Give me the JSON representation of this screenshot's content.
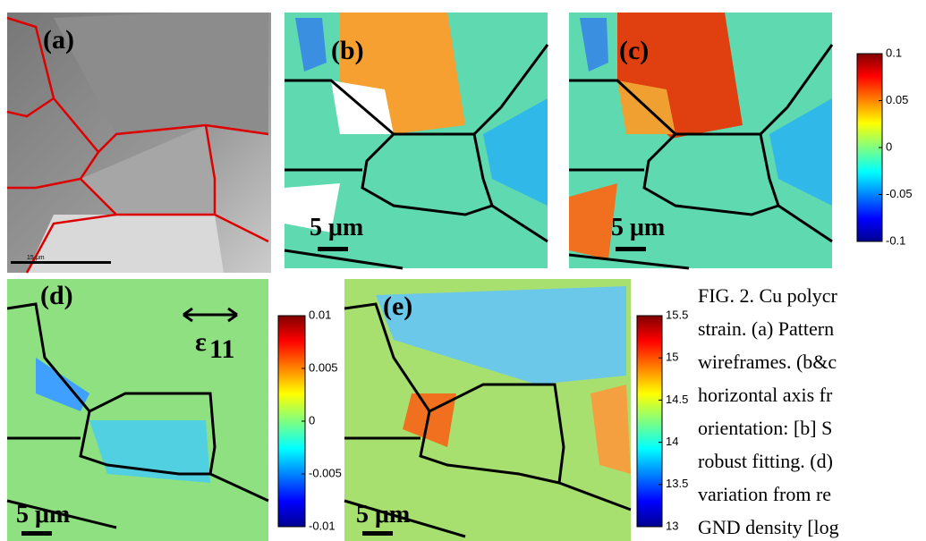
{
  "panels": [
    {
      "label": "(a)",
      "scale_bar": "15 μm"
    },
    {
      "label": "(b)",
      "scale_bar": "5 μm"
    },
    {
      "label": "(c)",
      "scale_bar": "5 μm"
    },
    {
      "label": "(d)",
      "scale_bar": "5 μm",
      "strain_axis": {
        "symbol": "ε",
        "subscript": "11"
      }
    },
    {
      "label": "(e)",
      "scale_bar": "5 μm"
    }
  ],
  "colorbars": [
    {
      "lim": [
        -0.1,
        0.1
      ],
      "ticks": [
        0.1,
        0.05,
        0,
        -0.05,
        -0.1
      ]
    },
    {
      "lim": [
        -0.01,
        0.01
      ],
      "ticks": [
        0.01,
        0.005,
        0,
        -0.005,
        -0.01
      ]
    },
    {
      "lim": [
        13,
        15.5
      ],
      "ticks": [
        15.5,
        15,
        14.5,
        14,
        13.5,
        13
      ]
    }
  ],
  "caption": {
    "lines": [
      "FIG. 2. Cu polycr",
      "strain. (a) Pattern",
      "wireframes. (b&c",
      "horizontal axis fr",
      "orientation: [b] S",
      "robust fitting. (d)",
      "variation from re",
      "GND density [log"
    ]
  }
}
